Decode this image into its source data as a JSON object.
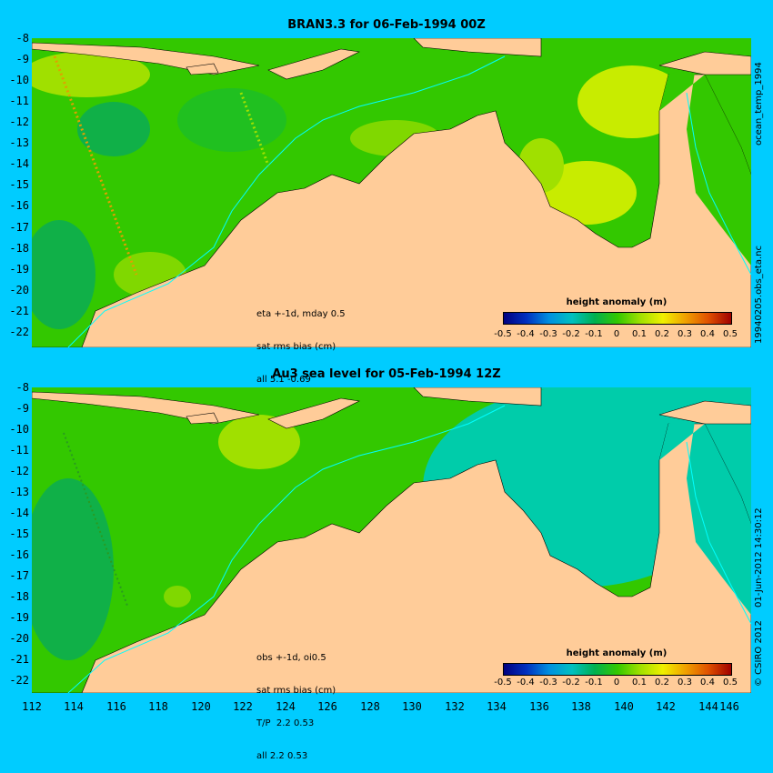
{
  "panel_top": {
    "title": "BRAN3.3 for 06-Feb-1994 00Z",
    "annotation": [
      "eta +-1d, mday 0.5",
      "sat rms bias (cm)",
      "all 5.1 -0.69"
    ],
    "side_labels": [
      "ocean_temp_1994",
      "19940205.obs_eta.nc"
    ]
  },
  "panel_bottom": {
    "title": "Au3 sea level  for 05-Feb-1994 12Z",
    "annotation": [
      "obs +-1d, oi0.5",
      "sat rms bias (cm)",
      "T/P  2.2 0.53",
      "all 2.2 0.53"
    ],
    "side_labels": [
      "01-Jun-2012 14:30:12",
      "© CSIRO 2012"
    ]
  },
  "colorbar": {
    "title": "height anomaly (m)",
    "ticks": [
      "-0.5",
      "-0.4",
      "-0.3",
      "-0.2",
      "-0.1",
      "0",
      "0.1",
      "0.2",
      "0.3",
      "0.4",
      "0.5"
    ],
    "colors": [
      "#000080",
      "#0030c0",
      "#0090e0",
      "#00c0c0",
      "#00b050",
      "#33c800",
      "#a0e000",
      "#f0f000",
      "#f0a000",
      "#e05000",
      "#a00000"
    ]
  },
  "axes": {
    "lat_labels": [
      "-8",
      "-9",
      "-10",
      "-11",
      "-12",
      "-13",
      "-14",
      "-15",
      "-16",
      "-17",
      "-18",
      "-19",
      "-20",
      "-21",
      "-22"
    ],
    "lon_labels": [
      "112",
      "114",
      "116",
      "118",
      "120",
      "122",
      "124",
      "126",
      "128",
      "130",
      "132",
      "134",
      "136",
      "138",
      "140",
      "142",
      "144",
      "146"
    ]
  },
  "colors": {
    "ocean_green": "#33c800",
    "land": "#ffcc99",
    "background": "#00ccff",
    "cyan_ocean": "#00ccaa"
  }
}
